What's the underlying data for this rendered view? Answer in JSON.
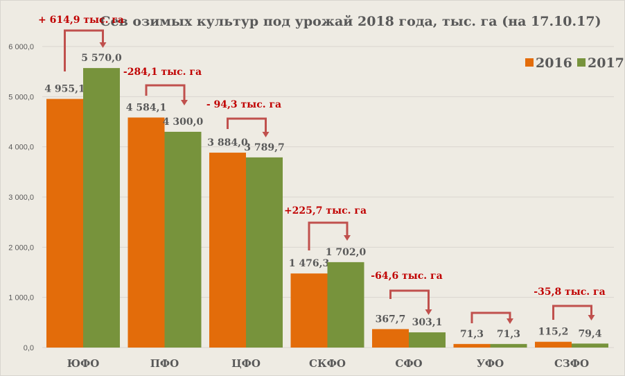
{
  "chart_data": {
    "type": "bar",
    "title": "Сев озимых культур под урожай 2018 года, тыс. га (на 17.10.17)",
    "categories": [
      "ЮФО",
      "ПФО",
      "ЦФО",
      "СКФО",
      "СФО",
      "УФО",
      "СЗФО"
    ],
    "series": [
      {
        "name": "2016",
        "color": "#e36c0a",
        "values": [
          4955.1,
          4584.1,
          3884.0,
          1476.3,
          367.7,
          71.3,
          115.2
        ],
        "labels": [
          "4 955,1",
          "4 584,1",
          "3 884,0",
          "1 476,3",
          "367,7",
          "71,3",
          "115,2"
        ]
      },
      {
        "name": "2017",
        "color": "#77933c",
        "values": [
          5570.0,
          4300.0,
          3789.7,
          1702.0,
          303.1,
          71.3,
          79.4
        ],
        "labels": [
          "5 570,0",
          "4 300,0",
          "3 789,7",
          "1 702,0",
          "303,1",
          "71,3",
          "79,4"
        ]
      }
    ],
    "annotations": [
      "+ 614,9 тыс. га",
      "-284,1 тыс. га",
      "- 94,3 тыс. га",
      "+225,7 тыс. га",
      "-64,6 тыс. га",
      "",
      "-35,8 тыс. га"
    ],
    "annotation_color": "#c00000",
    "arrow_color": "#c0504d",
    "yticks": [
      "0,0",
      "1 000,0",
      "2 000,0",
      "3 000,0",
      "4 000,0",
      "5 000,0",
      "6 000,0"
    ],
    "ylim": [
      0,
      6000
    ],
    "grid": true,
    "legend": "top-right"
  }
}
